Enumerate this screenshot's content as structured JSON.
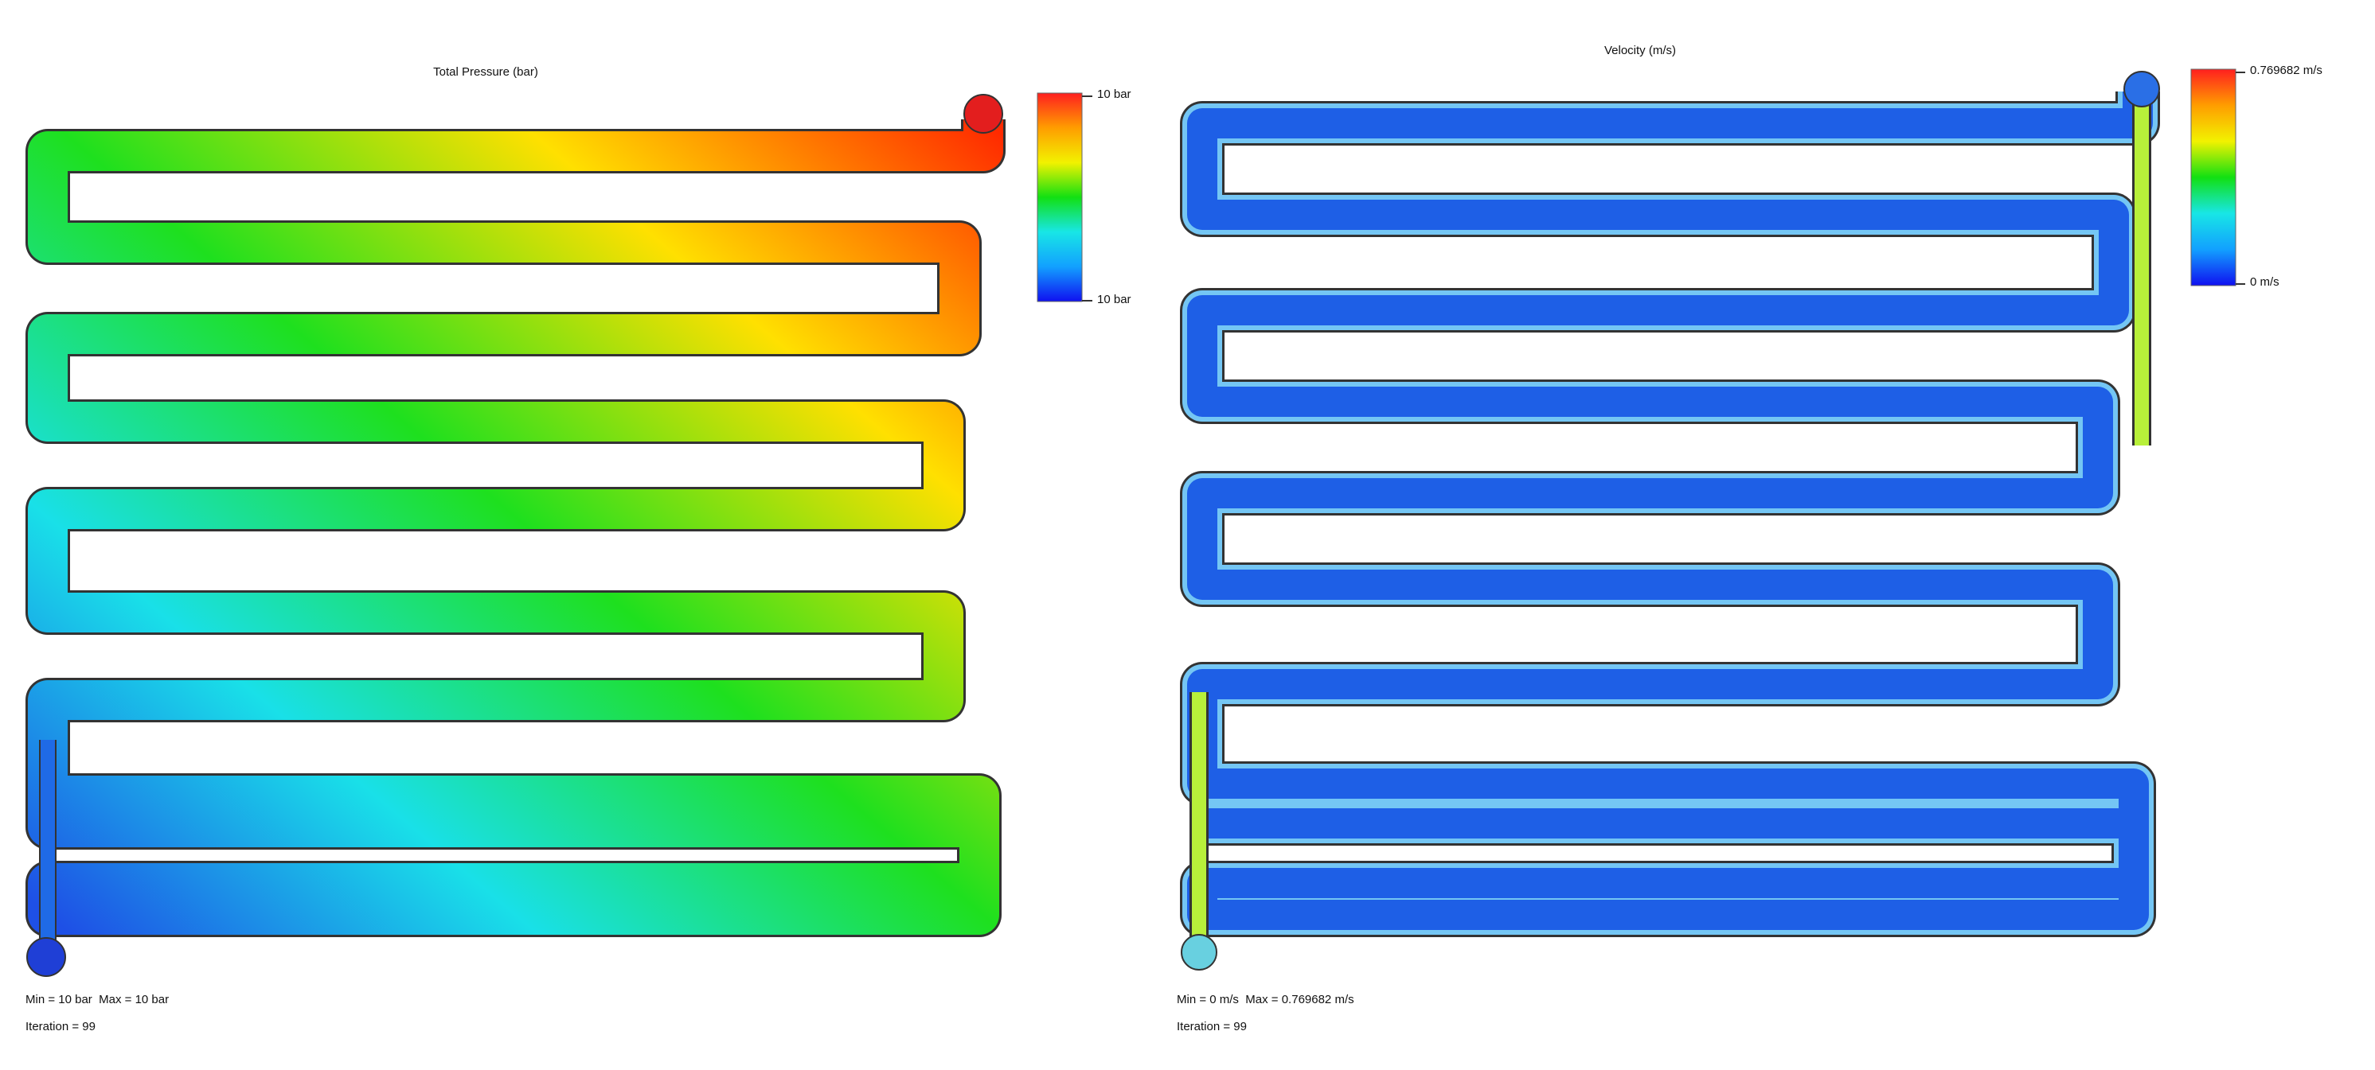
{
  "panels": [
    {
      "id": "pressure",
      "title": "Total Pressure (bar)",
      "legend": {
        "max_label": "10 bar",
        "min_label": "10 bar"
      },
      "info": {
        "min_text": "Min = 10 bar",
        "max_text": "Max = 10 bar",
        "iteration_text": "Iteration = 99"
      },
      "colors": {
        "inlet": "#e31e1e",
        "outlet": "#1f3fd6",
        "field_start": "#ff2a00",
        "field_mid1": "#ffe000",
        "field_mid2": "#1ee01e",
        "field_mid3": "#19e0e8",
        "field_end": "#1e50e6"
      }
    },
    {
      "id": "velocity",
      "title": "Velocity (m/s)",
      "legend": {
        "max_label": "0.769682 m/s",
        "min_label": "0 m/s"
      },
      "info": {
        "min_text": "Min = 0 m/s",
        "max_text": "Max = 0.769682 m/s",
        "iteration_text": "Iteration = 99"
      },
      "colors": {
        "channel": "#1e5fe6",
        "channel_edge": "#74c6f4",
        "hot": "#b8f03a",
        "inlet": "#2a6fe6",
        "outlet": "#68d0e0"
      }
    }
  ],
  "colorbar_stops": [
    "#ff1f1f",
    "#ff9d00",
    "#f2f200",
    "#12e012",
    "#18e6e6",
    "#12a0ff",
    "#1010f0"
  ]
}
